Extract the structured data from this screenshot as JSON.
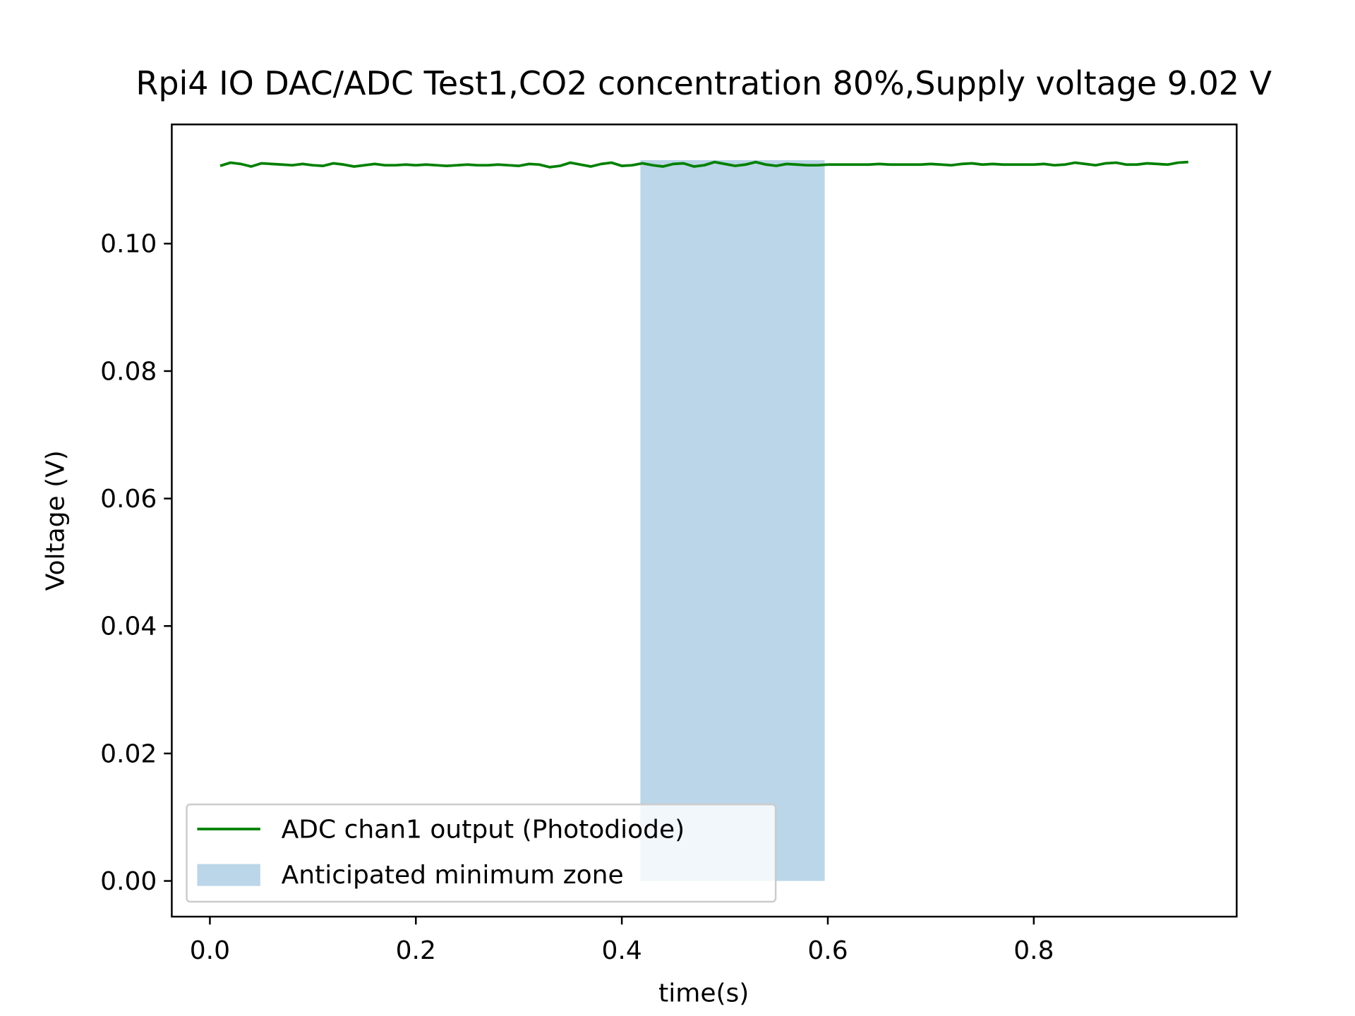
{
  "chart_data": {
    "type": "line",
    "title": "Rpi4 IO DAC/ADC Test1,CO2 concentration 80%,Supply voltage 9.02 V",
    "x_label": "time(s)",
    "y_label": "Voltage (V)",
    "x": [
      0.01,
      0.02,
      0.03,
      0.04,
      0.05,
      0.06,
      0.07,
      0.08,
      0.09,
      0.1,
      0.11,
      0.12,
      0.13,
      0.14,
      0.15,
      0.16,
      0.17,
      0.18,
      0.19,
      0.2,
      0.21,
      0.22,
      0.23,
      0.24,
      0.25,
      0.26,
      0.27,
      0.28,
      0.29,
      0.3,
      0.31,
      0.32,
      0.33,
      0.34,
      0.35,
      0.36,
      0.37,
      0.38,
      0.39,
      0.4,
      0.41,
      0.42,
      0.43,
      0.44,
      0.45,
      0.46,
      0.47,
      0.48,
      0.49,
      0.5,
      0.51,
      0.52,
      0.53,
      0.54,
      0.55,
      0.56,
      0.57,
      0.58,
      0.59,
      0.6,
      0.61,
      0.62,
      0.63,
      0.64,
      0.65,
      0.66,
      0.67,
      0.68,
      0.69,
      0.7,
      0.71,
      0.72,
      0.73,
      0.74,
      0.75,
      0.76,
      0.77,
      0.78,
      0.79,
      0.8,
      0.81,
      0.82,
      0.83,
      0.84,
      0.85,
      0.86,
      0.87,
      0.88,
      0.89,
      0.9,
      0.91,
      0.92,
      0.93,
      0.94,
      0.95
    ],
    "series": [
      {
        "name": "ADC chan1 output  (Photodiode)",
        "color": "#008000",
        "values": [
          0.1122,
          0.1127,
          0.1125,
          0.1121,
          0.1126,
          0.1125,
          0.1124,
          0.1123,
          0.1125,
          0.1123,
          0.1122,
          0.1126,
          0.1124,
          0.1121,
          0.1123,
          0.1125,
          0.1123,
          0.1123,
          0.1124,
          0.1123,
          0.1124,
          0.1123,
          0.1122,
          0.1123,
          0.1124,
          0.1123,
          0.1123,
          0.1124,
          0.1123,
          0.1122,
          0.1125,
          0.1124,
          0.112,
          0.1122,
          0.1127,
          0.1124,
          0.1121,
          0.1125,
          0.1127,
          0.1122,
          0.1123,
          0.1126,
          0.1123,
          0.1121,
          0.1125,
          0.1126,
          0.1121,
          0.1123,
          0.1128,
          0.1125,
          0.1122,
          0.1124,
          0.1128,
          0.1124,
          0.1122,
          0.1125,
          0.1124,
          0.1123,
          0.1123,
          0.1124,
          0.1124,
          0.1124,
          0.1124,
          0.1124,
          0.1125,
          0.1124,
          0.1124,
          0.1124,
          0.1124,
          0.1125,
          0.1124,
          0.1123,
          0.1125,
          0.1126,
          0.1124,
          0.1125,
          0.1124,
          0.1124,
          0.1124,
          0.1124,
          0.1125,
          0.1123,
          0.1124,
          0.1127,
          0.1125,
          0.1123,
          0.1126,
          0.1127,
          0.1124,
          0.1124,
          0.1126,
          0.1125,
          0.1124,
          0.1127,
          0.1128
        ]
      }
    ],
    "span": {
      "name": "Anticipated minimum zone",
      "color": "#1f77b4",
      "x": [
        0.418,
        0.597
      ],
      "y": [
        0,
        0.1131
      ]
    },
    "xlim": [
      -0.037,
      0.997
    ],
    "ylim": [
      -0.0056,
      0.1187
    ],
    "xticks": [
      {
        "value": 0,
        "label": "0.0"
      },
      {
        "value": 0.2,
        "label": "0.2"
      },
      {
        "value": 0.4,
        "label": "0.4"
      },
      {
        "value": 0.6,
        "label": "0.6"
      },
      {
        "value": 0.8,
        "label": "0.8"
      }
    ],
    "yticks": [
      {
        "value": 0,
        "label": "0.00"
      },
      {
        "value": 0.02,
        "label": "0.02"
      },
      {
        "value": 0.04,
        "label": "0.04"
      },
      {
        "value": 0.06,
        "label": "0.06"
      },
      {
        "value": 0.08,
        "label": "0.08"
      },
      {
        "value": 0.1,
        "label": "0.10"
      }
    ],
    "legend": "lower left"
  }
}
